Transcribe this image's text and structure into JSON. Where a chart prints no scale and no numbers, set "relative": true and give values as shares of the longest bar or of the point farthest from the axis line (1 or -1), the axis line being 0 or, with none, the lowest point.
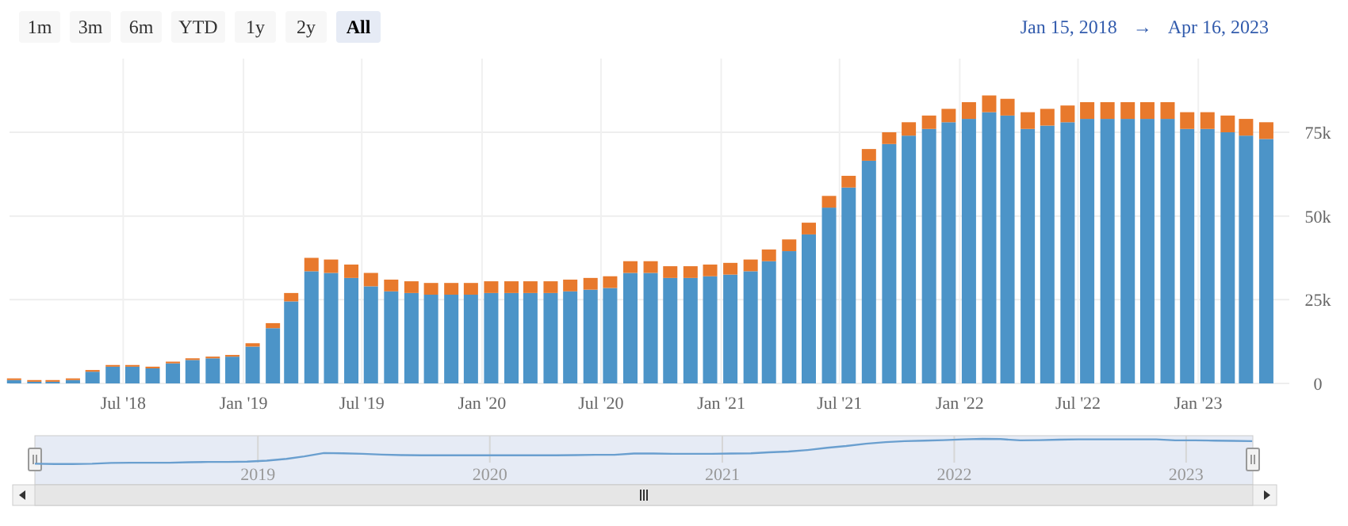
{
  "chart_data": [
    {
      "type": "other",
      "annotations": [
        "1m",
        "3m",
        "6m",
        "YTD",
        "1y",
        "2y",
        "All",
        "Jan 15, 2018",
        "→",
        "Apr 16, 2023"
      ]
    },
    {
      "type": "bar",
      "stacked": true,
      "grid": true,
      "x": [
        "2018-01-15",
        "2018-02-15",
        "2018-03-15",
        "2018-04-15",
        "2018-05-15",
        "2018-06-15",
        "2018-07-15",
        "2018-08-15",
        "2018-09-15",
        "2018-10-15",
        "2018-11-15",
        "2018-12-15",
        "2019-01-15",
        "2019-02-15",
        "2019-03-15",
        "2019-04-15",
        "2019-05-15",
        "2019-06-15",
        "2019-07-15",
        "2019-08-15",
        "2019-09-15",
        "2019-10-15",
        "2019-11-15",
        "2019-12-15",
        "2020-01-15",
        "2020-02-15",
        "2020-03-15",
        "2020-04-15",
        "2020-05-15",
        "2020-06-15",
        "2020-07-15",
        "2020-08-15",
        "2020-09-15",
        "2020-10-15",
        "2020-11-15",
        "2020-12-15",
        "2021-01-15",
        "2021-02-15",
        "2021-03-15",
        "2021-04-15",
        "2021-05-15",
        "2021-06-15",
        "2021-07-15",
        "2021-08-15",
        "2021-09-15",
        "2021-10-15",
        "2021-11-15",
        "2021-12-15",
        "2022-01-15",
        "2022-02-15",
        "2022-03-15",
        "2022-04-15",
        "2022-05-15",
        "2022-06-15",
        "2022-07-15",
        "2022-08-15",
        "2022-09-15",
        "2022-10-15",
        "2022-11-15",
        "2022-12-15",
        "2023-01-15",
        "2023-02-15",
        "2023-03-15",
        "2023-04-15"
      ],
      "series": [
        {
          "color": "#4c94c8",
          "values": [
            1000,
            500,
            500,
            1000,
            3500,
            5000,
            5000,
            4500,
            6000,
            7000,
            7500,
            8000,
            11000,
            16500,
            24500,
            33500,
            33000,
            31500,
            29000,
            27500,
            27000,
            26500,
            26500,
            26500,
            27000,
            27000,
            27000,
            27000,
            27500,
            28000,
            28500,
            33000,
            33000,
            31500,
            31500,
            32000,
            32500,
            33500,
            36500,
            39500,
            44500,
            52500,
            58500,
            66500,
            71500,
            74000,
            76000,
            78000,
            79000,
            81000,
            80000,
            76000,
            77000,
            78000,
            79000,
            79000,
            79000,
            79000,
            79000,
            76000,
            76000,
            75000,
            74000,
            73000
          ]
        },
        {
          "color": "#e8792c",
          "values": [
            500,
            500,
            500,
            500,
            500,
            500,
            500,
            500,
            500,
            500,
            500,
            500,
            1000,
            1500,
            2500,
            4000,
            4000,
            4000,
            4000,
            3500,
            3500,
            3500,
            3500,
            3500,
            3500,
            3500,
            3500,
            3500,
            3500,
            3500,
            3500,
            3500,
            3500,
            3500,
            3500,
            3500,
            3500,
            3500,
            3500,
            3500,
            3500,
            3500,
            3500,
            3500,
            3500,
            4000,
            4000,
            4000,
            5000,
            5000,
            5000,
            5000,
            5000,
            5000,
            5000,
            5000,
            5000,
            5000,
            5000,
            5000,
            5000,
            5000,
            5000,
            5000
          ]
        }
      ],
      "xlim": [
        "2018-01-08",
        "2023-04-26"
      ],
      "xticks": [
        {
          "value": "2018-07-01",
          "label": "Jul '18"
        },
        {
          "value": "2019-01-01",
          "label": "Jan '19"
        },
        {
          "value": "2019-07-01",
          "label": "Jul '19"
        },
        {
          "value": "2020-01-01",
          "label": "Jan '20"
        },
        {
          "value": "2020-07-01",
          "label": "Jul '20"
        },
        {
          "value": "2021-01-01",
          "label": "Jan '21"
        },
        {
          "value": "2021-07-01",
          "label": "Jul '21"
        },
        {
          "value": "2022-01-01",
          "label": "Jan '22"
        },
        {
          "value": "2022-07-01",
          "label": "Jul '22"
        },
        {
          "value": "2023-01-01",
          "label": "Jan '23"
        }
      ],
      "ylim": [
        0,
        97000
      ],
      "yticks": [
        0,
        {
          "value": 25000,
          "label": "25k"
        },
        {
          "value": 50000,
          "label": "50k"
        },
        {
          "value": 75000,
          "label": "75k"
        }
      ]
    },
    {
      "type": "line",
      "relative": true,
      "grid": "x",
      "x": [
        "2018-01-15",
        "2018-02-15",
        "2018-03-15",
        "2018-04-15",
        "2018-05-15",
        "2018-06-15",
        "2018-07-15",
        "2018-08-15",
        "2018-09-15",
        "2018-10-15",
        "2018-11-15",
        "2018-12-15",
        "2019-01-15",
        "2019-02-15",
        "2019-03-15",
        "2019-04-15",
        "2019-05-15",
        "2019-06-15",
        "2019-07-15",
        "2019-08-15",
        "2019-09-15",
        "2019-10-15",
        "2019-11-15",
        "2019-12-15",
        "2020-01-15",
        "2020-02-15",
        "2020-03-15",
        "2020-04-15",
        "2020-05-15",
        "2020-06-15",
        "2020-07-15",
        "2020-08-15",
        "2020-09-15",
        "2020-10-15",
        "2020-11-15",
        "2020-12-15",
        "2021-01-15",
        "2021-02-15",
        "2021-03-15",
        "2021-04-15",
        "2021-05-15",
        "2021-06-15",
        "2021-07-15",
        "2021-08-15",
        "2021-09-15",
        "2021-10-15",
        "2021-11-15",
        "2021-12-15",
        "2022-01-15",
        "2022-02-15",
        "2022-03-15",
        "2022-04-15",
        "2022-05-15",
        "2022-06-15",
        "2022-07-15",
        "2022-08-15",
        "2022-09-15",
        "2022-10-15",
        "2022-11-15",
        "2022-12-15",
        "2023-01-15",
        "2023-02-15",
        "2023-03-15",
        "2023-04-15"
      ],
      "series": [
        {
          "color": "#6a9fcf",
          "values": [
            0.02,
            0.01,
            0.01,
            0.02,
            0.05,
            0.06,
            0.06,
            0.06,
            0.08,
            0.09,
            0.09,
            0.1,
            0.14,
            0.21,
            0.31,
            0.44,
            0.43,
            0.41,
            0.38,
            0.36,
            0.35,
            0.35,
            0.35,
            0.35,
            0.35,
            0.35,
            0.35,
            0.35,
            0.36,
            0.37,
            0.37,
            0.42,
            0.42,
            0.41,
            0.41,
            0.41,
            0.42,
            0.43,
            0.47,
            0.5,
            0.56,
            0.65,
            0.72,
            0.81,
            0.87,
            0.91,
            0.93,
            0.95,
            0.98,
            1,
            0.99,
            0.94,
            0.95,
            0.97,
            0.98,
            0.98,
            0.98,
            0.98,
            0.98,
            0.94,
            0.94,
            0.93,
            0.92,
            0.91
          ]
        }
      ],
      "xlim": [
        "2018-01-15",
        "2023-04-16"
      ],
      "xticks": [
        {
          "value": "2019-01-01",
          "label": "2019"
        },
        {
          "value": "2020-01-01",
          "label": "2020"
        },
        {
          "value": "2021-01-01",
          "label": "2021"
        },
        {
          "value": "2022-01-01",
          "label": "2022"
        },
        {
          "value": "2023-01-01",
          "label": "2023"
        }
      ]
    }
  ]
}
